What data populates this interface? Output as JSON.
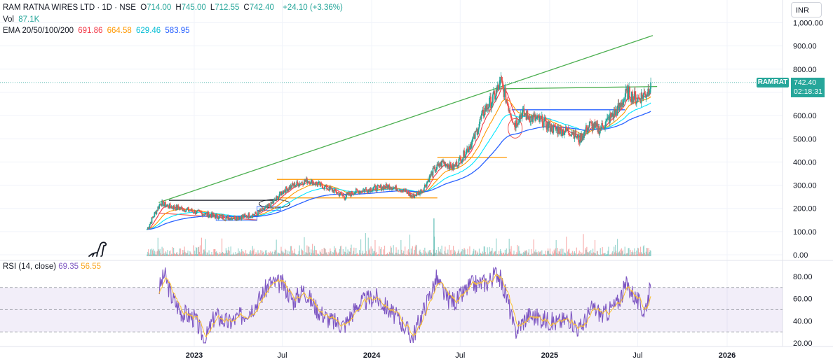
{
  "header": {
    "title": "RAM RATNA WIRES LTD · 1D · NSE",
    "ohlc": [
      {
        "key": "O",
        "value": "714.00"
      },
      {
        "key": "H",
        "value": "745.00"
      },
      {
        "key": "L",
        "value": "712.55"
      },
      {
        "key": "C",
        "value": "742.40"
      }
    ],
    "change": "+24.10 (+3.36%)",
    "vol_label": "Vol",
    "vol_value": "87.1K",
    "ema_label": "EMA 20/50/100/200",
    "ema_values": [
      "691.86",
      "664.58",
      "629.46",
      "583.95"
    ]
  },
  "currency": "INR",
  "ticker_tag": "RAMRAT",
  "last_price": "742.40",
  "countdown": "02:18:31",
  "rsi_legend": {
    "label": "RSI (14, close)",
    "rsi": "69.35",
    "ma": "56.55"
  },
  "colors": {
    "up": "#26a69a",
    "down": "#ef5350",
    "ema20": "#f23645",
    "ema50": "#ff9800",
    "ema100": "#00e5ff",
    "ema200": "#2962ff",
    "rsi": "#7e57c2",
    "rsi_ma": "#fbc02d",
    "trend": "#4caf50",
    "box": "#ff9800"
  },
  "chart_data": [
    {
      "type": "candlestick",
      "title": "RAM RATNA WIRES LTD · 1D · NSE",
      "y_ticks": [
        "1,000.00",
        "900.00",
        "800.00",
        "700.00",
        "600.00",
        "500.00",
        "400.00",
        "300.00",
        "200.00",
        "100.00",
        "0.00"
      ],
      "ylim": [
        0,
        1000
      ],
      "x_ticks": [
        "2023",
        "Jul",
        "2024",
        "Jul",
        "2025",
        "Jul",
        "2026"
      ],
      "x_tick_dates": [
        "2023-01-01",
        "2023-07-01",
        "2024-01-01",
        "2024-07-01",
        "2025-01-01",
        "2025-07-01",
        "2026-01-01"
      ],
      "xlim": [
        "2022-08-15",
        "2026-03-01"
      ],
      "close_anchors": [
        [
          "2022-09-26",
          110
        ],
        [
          "2022-10-10",
          170
        ],
        [
          "2022-10-24",
          225
        ],
        [
          "2022-11-07",
          210
        ],
        [
          "2022-12-05",
          200
        ],
        [
          "2023-01-02",
          185
        ],
        [
          "2023-02-06",
          170
        ],
        [
          "2023-03-06",
          160
        ],
        [
          "2023-04-03",
          162
        ],
        [
          "2023-05-08",
          175
        ],
        [
          "2023-06-05",
          210
        ],
        [
          "2023-07-03",
          275
        ],
        [
          "2023-07-24",
          300
        ],
        [
          "2023-08-21",
          320
        ],
        [
          "2023-09-18",
          300
        ],
        [
          "2023-10-16",
          275
        ],
        [
          "2023-11-06",
          250
        ],
        [
          "2023-11-27",
          272
        ],
        [
          "2024-01-01",
          285
        ],
        [
          "2024-02-05",
          295
        ],
        [
          "2024-03-04",
          280
        ],
        [
          "2024-03-25",
          250
        ],
        [
          "2024-04-15",
          280
        ],
        [
          "2024-05-06",
          360
        ],
        [
          "2024-05-27",
          400
        ],
        [
          "2024-06-17",
          375
        ],
        [
          "2024-07-08",
          430
        ],
        [
          "2024-07-29",
          500
        ],
        [
          "2024-08-19",
          620
        ],
        [
          "2024-09-09",
          680
        ],
        [
          "2024-09-23",
          745
        ],
        [
          "2024-10-07",
          650
        ],
        [
          "2024-10-21",
          560
        ],
        [
          "2024-11-04",
          610
        ],
        [
          "2024-11-25",
          590
        ],
        [
          "2024-12-16",
          575
        ],
        [
          "2025-01-06",
          545
        ],
        [
          "2025-01-27",
          535
        ],
        [
          "2025-02-17",
          530
        ],
        [
          "2025-03-03",
          495
        ],
        [
          "2025-03-24",
          560
        ],
        [
          "2025-04-14",
          540
        ],
        [
          "2025-05-05",
          590
        ],
        [
          "2025-05-26",
          640
        ],
        [
          "2025-06-09",
          700
        ],
        [
          "2025-06-30",
          670
        ],
        [
          "2025-07-21",
          700
        ],
        [
          "2025-07-28",
          742.4
        ]
      ],
      "last": {
        "open": 714.0,
        "high": 745.0,
        "low": 712.55,
        "close": 742.4
      }
    },
    {
      "type": "line",
      "title": "RSI (14, close)",
      "y_ticks": [
        "80.00",
        "60.00",
        "40.00",
        "20.00"
      ],
      "ylim": [
        17,
        86
      ],
      "levels": [
        70,
        50,
        30
      ],
      "rsi_anchors": [
        [
          "2022-10-20",
          68
        ],
        [
          "2022-11-01",
          82
        ],
        [
          "2022-11-15",
          62
        ],
        [
          "2022-12-05",
          48
        ],
        [
          "2023-01-02",
          42
        ],
        [
          "2023-01-23",
          22
        ],
        [
          "2023-02-13",
          45
        ],
        [
          "2023-03-13",
          38
        ],
        [
          "2023-04-10",
          45
        ],
        [
          "2023-05-08",
          55
        ],
        [
          "2023-06-05",
          74
        ],
        [
          "2023-07-03",
          73
        ],
        [
          "2023-07-24",
          58
        ],
        [
          "2023-08-14",
          68
        ],
        [
          "2023-09-11",
          50
        ],
        [
          "2023-10-09",
          40
        ],
        [
          "2023-11-06",
          36
        ],
        [
          "2023-12-04",
          55
        ],
        [
          "2024-01-08",
          62
        ],
        [
          "2024-02-05",
          50
        ],
        [
          "2024-03-04",
          38
        ],
        [
          "2024-03-25",
          25
        ],
        [
          "2024-04-22",
          55
        ],
        [
          "2024-05-13",
          78
        ],
        [
          "2024-06-03",
          60
        ],
        [
          "2024-06-24",
          58
        ],
        [
          "2024-07-22",
          72
        ],
        [
          "2024-08-26",
          75
        ],
        [
          "2024-09-16",
          84
        ],
        [
          "2024-10-07",
          58
        ],
        [
          "2024-10-21",
          30
        ],
        [
          "2024-11-18",
          45
        ],
        [
          "2024-12-16",
          42
        ],
        [
          "2025-01-13",
          38
        ],
        [
          "2025-02-10",
          42
        ],
        [
          "2025-03-03",
          32
        ],
        [
          "2025-03-31",
          52
        ],
        [
          "2025-04-21",
          45
        ],
        [
          "2025-05-19",
          55
        ],
        [
          "2025-06-09",
          73
        ],
        [
          "2025-06-30",
          58
        ],
        [
          "2025-07-14",
          48
        ],
        [
          "2025-07-28",
          69.35
        ]
      ]
    }
  ]
}
